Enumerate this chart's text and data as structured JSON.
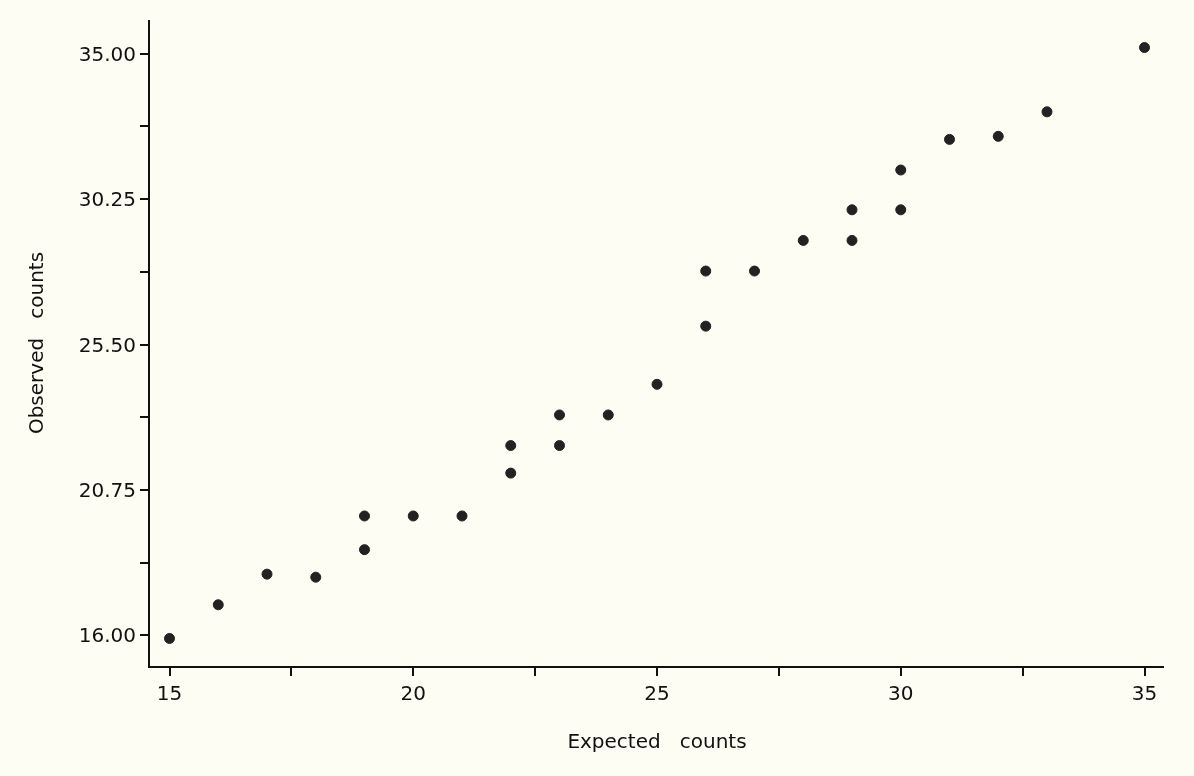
{
  "chart_data": {
    "type": "scatter",
    "xlabel": "Expected   counts",
    "ylabel": "Observed   counts",
    "x": [
      15,
      16,
      17,
      18,
      19,
      19,
      20,
      21,
      22,
      22,
      23,
      23,
      24,
      25,
      26,
      26,
      27,
      28,
      29,
      29,
      30,
      30,
      31,
      32,
      33,
      35
    ],
    "series": [
      {
        "color": "#222222",
        "values": [
          15.9,
          17.0,
          18.0,
          17.9,
          19.9,
          18.8,
          19.9,
          19.9,
          22.2,
          21.3,
          23.2,
          22.2,
          23.2,
          24.2,
          27.9,
          26.1,
          27.9,
          28.9,
          28.9,
          29.9,
          29.9,
          31.2,
          32.2,
          32.3,
          33.1,
          35.2
        ]
      }
    ],
    "xlim": [
      14.6,
      35.4
    ],
    "ylim": [
      15.0,
      36.1
    ],
    "xticks": [
      15,
      {
        "value": 17.5,
        "label": null
      },
      20,
      {
        "value": 22.5,
        "label": null
      },
      25,
      {
        "value": 27.5,
        "label": null
      },
      30,
      {
        "value": 32.5,
        "label": null
      },
      35
    ],
    "yticks": [
      {
        "value": 16,
        "label": "16.00"
      },
      {
        "value": 18.375,
        "label": null
      },
      {
        "value": 20.75,
        "label": "20.75"
      },
      {
        "value": 23.125,
        "label": null
      },
      {
        "value": 25.5,
        "label": "25.50"
      },
      {
        "value": 27.875,
        "label": null
      },
      {
        "value": 30.25,
        "label": "30.25"
      },
      {
        "value": 32.625,
        "label": null
      },
      {
        "value": 35,
        "label": "35.00"
      }
    ],
    "marker": "circle",
    "grid": false,
    "legend": false
  }
}
